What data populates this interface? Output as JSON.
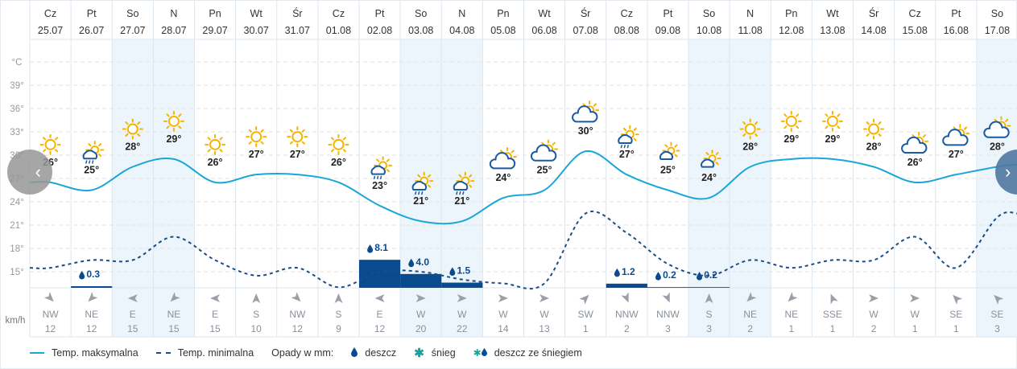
{
  "colors": {
    "max_line": "#1aa6d9",
    "min_line": "#1a4d8a",
    "precip": "#0a4b8f",
    "weekend": "#edf5fc",
    "grid": "#dde6ee",
    "sun": "#f5b400",
    "cloud": "#1a5aa0"
  },
  "axis": {
    "unit_label": "°C",
    "wind_unit": "km/h"
  },
  "chart_data": {
    "type": "line",
    "title": "",
    "ylabel": "°C",
    "ylim": [
      12,
      42
    ],
    "yticks": [
      "39°",
      "36°",
      "33°",
      "30°",
      "27°",
      "24°",
      "21°",
      "18°",
      "15°"
    ],
    "grid": true,
    "days": [
      "Cz",
      "Pt",
      "So",
      "N",
      "Pn",
      "Wt",
      "Śr",
      "Cz",
      "Pt",
      "So",
      "N",
      "Pn",
      "Wt",
      "Śr",
      "Cz",
      "Pt",
      "So",
      "N",
      "Pn",
      "Wt",
      "Śr",
      "Cz",
      "Pt",
      "So"
    ],
    "dates": [
      "25.07",
      "26.07",
      "27.07",
      "28.07",
      "29.07",
      "30.07",
      "31.07",
      "01.08",
      "02.08",
      "03.08",
      "04.08",
      "05.08",
      "06.08",
      "07.08",
      "08.08",
      "09.08",
      "10.08",
      "11.08",
      "12.08",
      "13.08",
      "14.08",
      "15.08",
      "16.08",
      "17.08"
    ],
    "weekend": [
      false,
      false,
      true,
      true,
      false,
      false,
      false,
      false,
      false,
      true,
      true,
      false,
      false,
      false,
      false,
      false,
      true,
      true,
      false,
      false,
      false,
      false,
      false,
      true
    ],
    "icons": [
      "sun",
      "sun-rain",
      "sun",
      "sun",
      "sun",
      "sun",
      "sun",
      "sun",
      "sun-rain",
      "sun-rain",
      "sun-rain",
      "sun-cloud",
      "sun-cloud",
      "sun-cloud",
      "sun-rain",
      "sun-cloud-small",
      "sun-cloud-small",
      "sun",
      "sun",
      "sun",
      "sun",
      "sun-cloud",
      "sun-cloud",
      "sun-cloud"
    ],
    "series": [
      {
        "name": "Temp. maksymalna",
        "values": [
          26,
          25,
          28,
          29,
          26,
          27,
          27,
          26,
          23,
          21,
          21,
          24,
          25,
          30,
          27,
          25,
          24,
          28,
          29,
          29,
          28,
          26,
          27,
          28
        ],
        "labels": [
          "26°",
          "25°",
          "28°",
          "29°",
          "26°",
          "27°",
          "27°",
          "26°",
          "23°",
          "21°",
          "21°",
          "24°",
          "25°",
          "30°",
          "27°",
          "25°",
          "24°",
          "28°",
          "29°",
          "29°",
          "28°",
          "26°",
          "27°",
          "28°"
        ]
      },
      {
        "name": "Temp. minimalna",
        "values": [
          15.5,
          16.5,
          16.5,
          19.5,
          16.5,
          14.5,
          15.5,
          13,
          15,
          15,
          14,
          13.5,
          13.5,
          22.5,
          20,
          16,
          14.5,
          16.5,
          15.5,
          16.5,
          16.5,
          19.5,
          15.5,
          22
        ]
      }
    ],
    "precipitation": {
      "values": [
        null,
        0.3,
        null,
        null,
        null,
        null,
        null,
        null,
        8.1,
        4.0,
        1.5,
        null,
        null,
        null,
        1.2,
        0.2,
        0.2,
        null,
        null,
        null,
        null,
        null,
        null,
        null
      ],
      "labels": [
        "",
        "0.3",
        "",
        "",
        "",
        "",
        "",
        "",
        "8.1",
        "4.0",
        "1.5",
        "",
        "",
        "",
        "1.2",
        "0.2",
        "0.2",
        "",
        "",
        "",
        "",
        "",
        "",
        ""
      ]
    },
    "wind_dir": [
      "NW",
      "NE",
      "E",
      "NE",
      "E",
      "S",
      "NW",
      "S",
      "E",
      "W",
      "W",
      "W",
      "W",
      "SW",
      "NNW",
      "NNW",
      "S",
      "NE",
      "NE",
      "SSE",
      "W",
      "W",
      "SE",
      "SE"
    ],
    "wind_speed": [
      "12",
      "12",
      "15",
      "15",
      "15",
      "10",
      "12",
      "9",
      "12",
      "20",
      "22",
      "14",
      "13",
      "1",
      "2",
      "3",
      "3",
      "2",
      "1",
      "1",
      "2",
      "1",
      "1",
      "3"
    ]
  },
  "legend": {
    "max": "Temp. maksymalna",
    "min": "Temp. minimalna",
    "precip_title": "Opady w mm:",
    "rain": "deszcz",
    "snow": "śnieg",
    "sleet": "deszcz ze śniegiem"
  },
  "nav": {
    "prev": "‹",
    "next": "›"
  }
}
